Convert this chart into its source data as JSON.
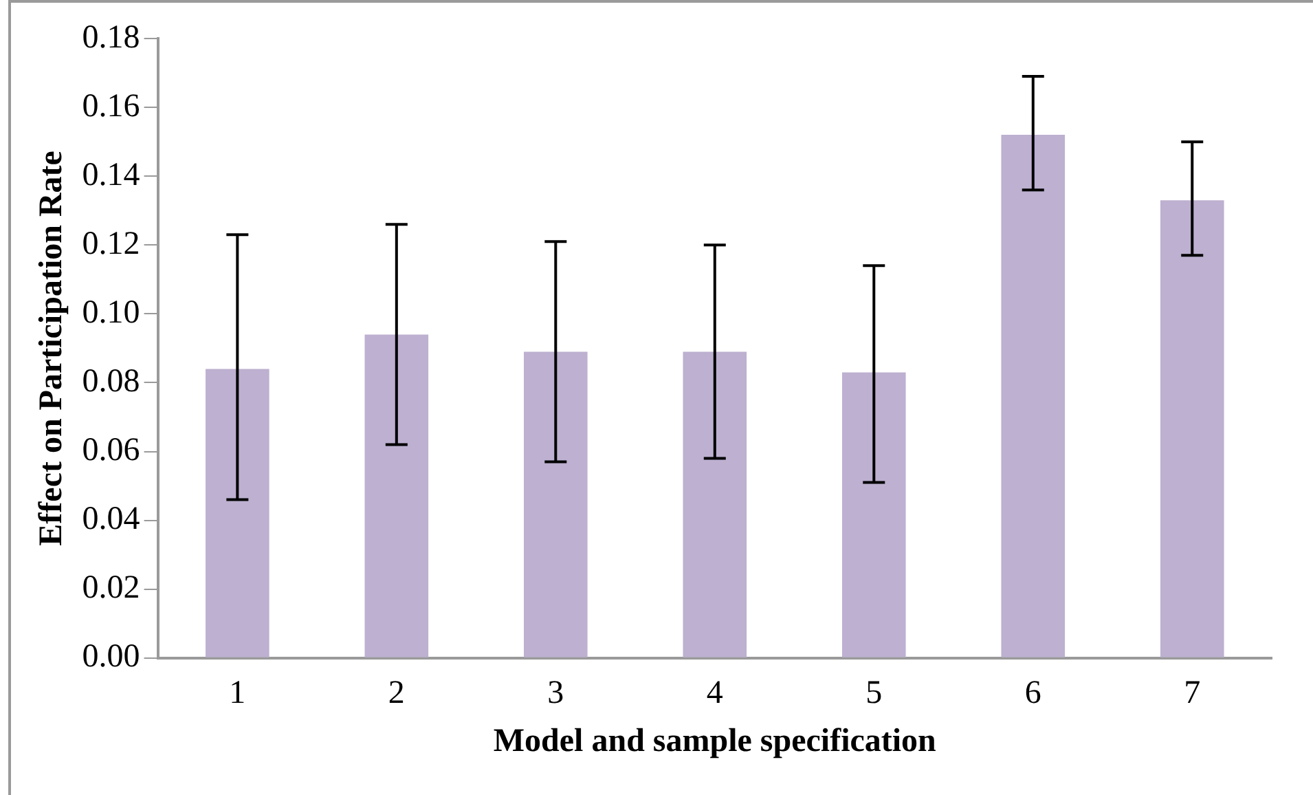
{
  "chart_data": {
    "type": "bar",
    "xlabel": "Model and sample specification",
    "ylabel": "Effect on Participation Rate",
    "categories": [
      "1",
      "2",
      "3",
      "4",
      "5",
      "6",
      "7"
    ],
    "values": [
      0.084,
      0.094,
      0.089,
      0.089,
      0.083,
      0.152,
      0.133
    ],
    "errors": [
      [
        0.046,
        0.123
      ],
      [
        0.062,
        0.126
      ],
      [
        0.057,
        0.121
      ],
      [
        0.058,
        0.12
      ],
      [
        0.051,
        0.114
      ],
      [
        0.136,
        0.169
      ],
      [
        0.117,
        0.15
      ]
    ],
    "color": "#bdb0d0",
    "ylim": [
      0,
      0.18
    ],
    "yticks": [
      {
        "value": 0,
        "label": "0.00"
      },
      {
        "value": 0.02,
        "label": "0.02"
      },
      {
        "value": 0.04,
        "label": "0.04"
      },
      {
        "value": 0.06,
        "label": "0.06"
      },
      {
        "value": 0.08,
        "label": "0.08"
      },
      {
        "value": 0.1,
        "label": "0.10"
      },
      {
        "value": 0.12,
        "label": "0.12"
      },
      {
        "value": 0.14,
        "label": "0.14"
      },
      {
        "value": 0.16,
        "label": "0.16"
      },
      {
        "value": 0.18,
        "label": "0.18"
      }
    ],
    "grid": false,
    "legend": false
  }
}
